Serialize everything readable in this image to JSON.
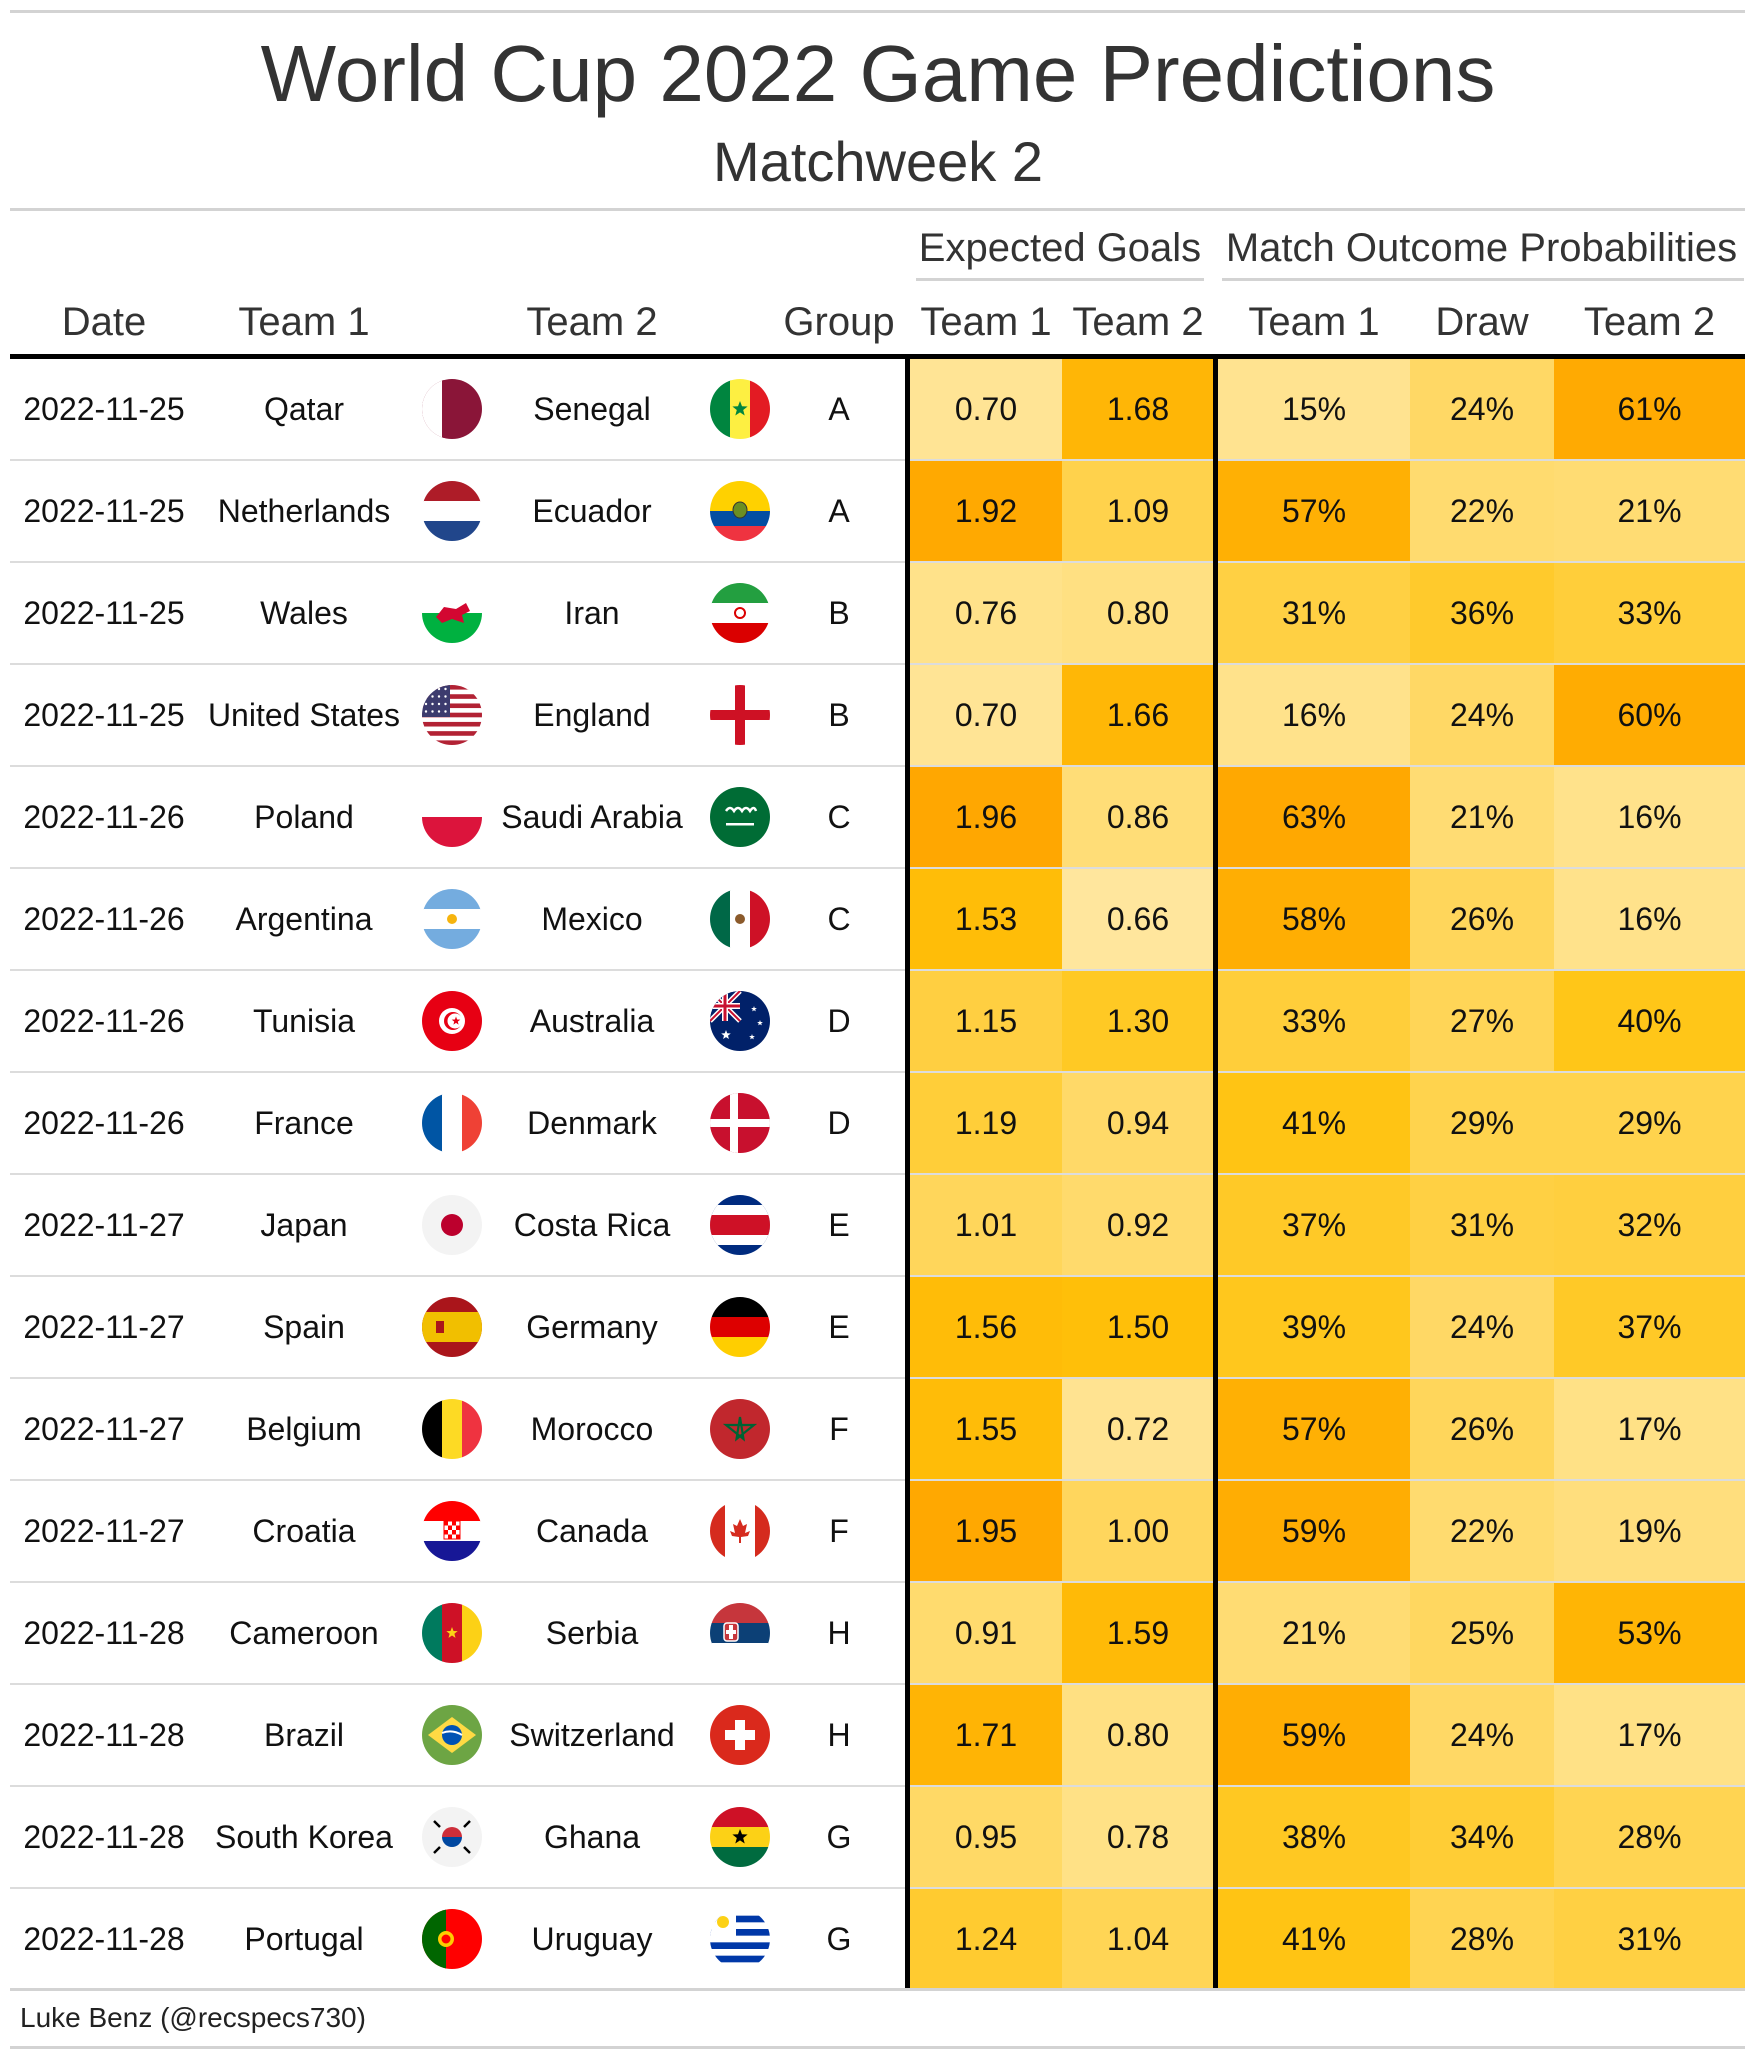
{
  "title": "World Cup 2022 Game Predictions",
  "subtitle": "Matchweek 2",
  "spanners": {
    "expected_goals": "Expected Goals",
    "outcome_probs": "Match Outcome Probabilities"
  },
  "columns": {
    "date": "Date",
    "team1": "Team 1",
    "team2": "Team 2",
    "group": "Group",
    "xg_team1": "Team 1",
    "xg_team2": "Team 2",
    "p_team1": "Team 1",
    "p_draw": "Draw",
    "p_team2": "Team 2"
  },
  "footer": "Luke Benz (@recspecs730)",
  "colors": {
    "low": "#FFE9A8",
    "mid": "#FFC20A",
    "high": "#FFA500"
  },
  "rows": [
    {
      "date": "2022-11-25",
      "team1": "Qatar",
      "flag1": "qatar-flag-icon",
      "team2": "Senegal",
      "flag2": "senegal-flag-icon",
      "group": "A",
      "xg1": "0.70",
      "xg2": "1.68",
      "p1": "15%",
      "pd": "24%",
      "p2": "61%"
    },
    {
      "date": "2022-11-25",
      "team1": "Netherlands",
      "flag1": "netherlands-flag-icon",
      "team2": "Ecuador",
      "flag2": "ecuador-flag-icon",
      "group": "A",
      "xg1": "1.92",
      "xg2": "1.09",
      "p1": "57%",
      "pd": "22%",
      "p2": "21%"
    },
    {
      "date": "2022-11-25",
      "team1": "Wales",
      "flag1": "wales-flag-icon",
      "team2": "Iran",
      "flag2": "iran-flag-icon",
      "group": "B",
      "xg1": "0.76",
      "xg2": "0.80",
      "p1": "31%",
      "pd": "36%",
      "p2": "33%"
    },
    {
      "date": "2022-11-25",
      "team1": "United States",
      "flag1": "usa-flag-icon",
      "team2": "England",
      "flag2": "england-flag-icon",
      "group": "B",
      "xg1": "0.70",
      "xg2": "1.66",
      "p1": "16%",
      "pd": "24%",
      "p2": "60%"
    },
    {
      "date": "2022-11-26",
      "team1": "Poland",
      "flag1": "poland-flag-icon",
      "team2": "Saudi Arabia",
      "flag2": "saudi-arabia-flag-icon",
      "group": "C",
      "xg1": "1.96",
      "xg2": "0.86",
      "p1": "63%",
      "pd": "21%",
      "p2": "16%"
    },
    {
      "date": "2022-11-26",
      "team1": "Argentina",
      "flag1": "argentina-flag-icon",
      "team2": "Mexico",
      "flag2": "mexico-flag-icon",
      "group": "C",
      "xg1": "1.53",
      "xg2": "0.66",
      "p1": "58%",
      "pd": "26%",
      "p2": "16%"
    },
    {
      "date": "2022-11-26",
      "team1": "Tunisia",
      "flag1": "tunisia-flag-icon",
      "team2": "Australia",
      "flag2": "australia-flag-icon",
      "group": "D",
      "xg1": "1.15",
      "xg2": "1.30",
      "p1": "33%",
      "pd": "27%",
      "p2": "40%"
    },
    {
      "date": "2022-11-26",
      "team1": "France",
      "flag1": "france-flag-icon",
      "team2": "Denmark",
      "flag2": "denmark-flag-icon",
      "group": "D",
      "xg1": "1.19",
      "xg2": "0.94",
      "p1": "41%",
      "pd": "29%",
      "p2": "29%"
    },
    {
      "date": "2022-11-27",
      "team1": "Japan",
      "flag1": "japan-flag-icon",
      "team2": "Costa Rica",
      "flag2": "costa-rica-flag-icon",
      "group": "E",
      "xg1": "1.01",
      "xg2": "0.92",
      "p1": "37%",
      "pd": "31%",
      "p2": "32%"
    },
    {
      "date": "2022-11-27",
      "team1": "Spain",
      "flag1": "spain-flag-icon",
      "team2": "Germany",
      "flag2": "germany-flag-icon",
      "group": "E",
      "xg1": "1.56",
      "xg2": "1.50",
      "p1": "39%",
      "pd": "24%",
      "p2": "37%"
    },
    {
      "date": "2022-11-27",
      "team1": "Belgium",
      "flag1": "belgium-flag-icon",
      "team2": "Morocco",
      "flag2": "morocco-flag-icon",
      "group": "F",
      "xg1": "1.55",
      "xg2": "0.72",
      "p1": "57%",
      "pd": "26%",
      "p2": "17%"
    },
    {
      "date": "2022-11-27",
      "team1": "Croatia",
      "flag1": "croatia-flag-icon",
      "team2": "Canada",
      "flag2": "canada-flag-icon",
      "group": "F",
      "xg1": "1.95",
      "xg2": "1.00",
      "p1": "59%",
      "pd": "22%",
      "p2": "19%"
    },
    {
      "date": "2022-11-28",
      "team1": "Cameroon",
      "flag1": "cameroon-flag-icon",
      "team2": "Serbia",
      "flag2": "serbia-flag-icon",
      "group": "H",
      "xg1": "0.91",
      "xg2": "1.59",
      "p1": "21%",
      "pd": "25%",
      "p2": "53%"
    },
    {
      "date": "2022-11-28",
      "team1": "Brazil",
      "flag1": "brazil-flag-icon",
      "team2": "Switzerland",
      "flag2": "switzerland-flag-icon",
      "group": "H",
      "xg1": "1.71",
      "xg2": "0.80",
      "p1": "59%",
      "pd": "24%",
      "p2": "17%"
    },
    {
      "date": "2022-11-28",
      "team1": "South Korea",
      "flag1": "south-korea-flag-icon",
      "team2": "Ghana",
      "flag2": "ghana-flag-icon",
      "group": "G",
      "xg1": "0.95",
      "xg2": "0.78",
      "p1": "38%",
      "pd": "34%",
      "p2": "28%"
    },
    {
      "date": "2022-11-28",
      "team1": "Portugal",
      "flag1": "portugal-flag-icon",
      "team2": "Uruguay",
      "flag2": "uruguay-flag-icon",
      "group": "G",
      "xg1": "1.24",
      "xg2": "1.04",
      "p1": "41%",
      "pd": "28%",
      "p2": "31%"
    }
  ]
}
